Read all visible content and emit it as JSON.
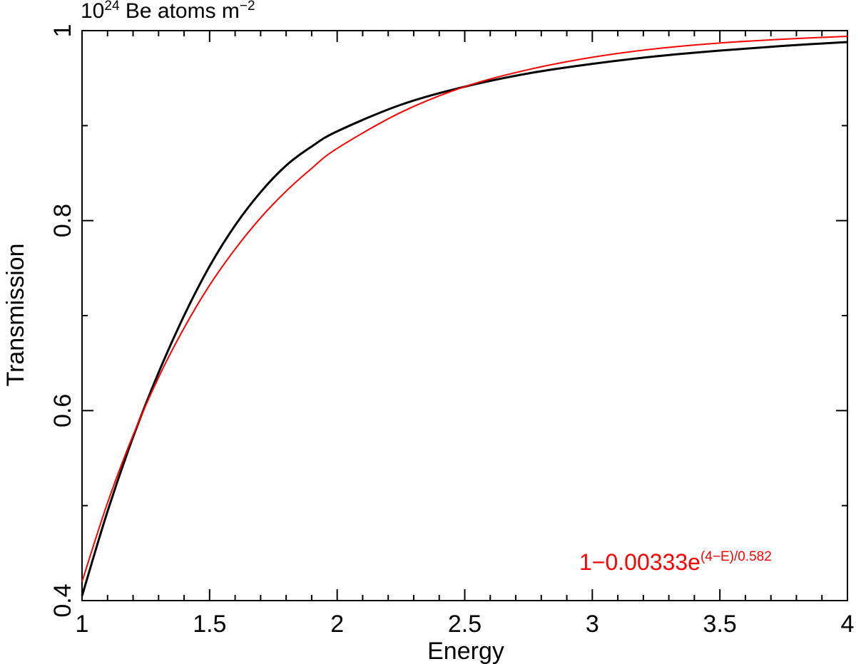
{
  "chart_data": {
    "type": "line",
    "title": "",
    "subtitle_parts": {
      "base": "10",
      "exp": "24",
      "mid": " Be atoms m",
      "exp2": "−2"
    },
    "xlabel": "Energy",
    "ylabel": "Transmission",
    "xlim": [
      1,
      4
    ],
    "ylim": [
      0.4,
      1.0
    ],
    "x_ticks": [
      1,
      1.5,
      2,
      2.5,
      3,
      3.5,
      4
    ],
    "x_tick_labels": [
      "1",
      "1.5",
      "2",
      "2.5",
      "3",
      "3.5",
      "4"
    ],
    "y_ticks": [
      0.4,
      0.6,
      0.8,
      1.0
    ],
    "y_tick_labels": [
      "0.4",
      "0.6",
      "0.8",
      "1"
    ],
    "grid": false,
    "series": [
      {
        "color": "#000000",
        "x": [
          1.0,
          1.1,
          1.2,
          1.3,
          1.4,
          1.5,
          1.6,
          1.7,
          1.8,
          1.9,
          2.0,
          2.25,
          2.5,
          2.75,
          3.0,
          3.25,
          3.5,
          3.75,
          4.0
        ],
        "y": [
          0.405,
          0.494,
          0.572,
          0.64,
          0.7,
          0.752,
          0.795,
          0.83,
          0.858,
          0.878,
          0.894,
          0.922,
          0.941,
          0.955,
          0.965,
          0.973,
          0.979,
          0.984,
          0.988
        ]
      },
      {
        "color": "#ff0000",
        "x": [
          1.0,
          1.1,
          1.2,
          1.3,
          1.4,
          1.5,
          1.6,
          1.7,
          1.8,
          1.9,
          2.0,
          2.25,
          2.5,
          2.75,
          3.0,
          3.25,
          3.5,
          3.75,
          4.0
        ],
        "y": [
          0.42,
          0.503,
          0.574,
          0.635,
          0.687,
          0.732,
          0.77,
          0.803,
          0.831,
          0.855,
          0.876,
          0.914,
          0.941,
          0.959,
          0.972,
          0.981,
          0.987,
          0.991,
          0.994
        ]
      }
    ],
    "annotation": {
      "color": "#ff0000",
      "base": "1−0.00333e",
      "exp": "(4−E)/0.582",
      "placement": "bottom-right"
    }
  }
}
